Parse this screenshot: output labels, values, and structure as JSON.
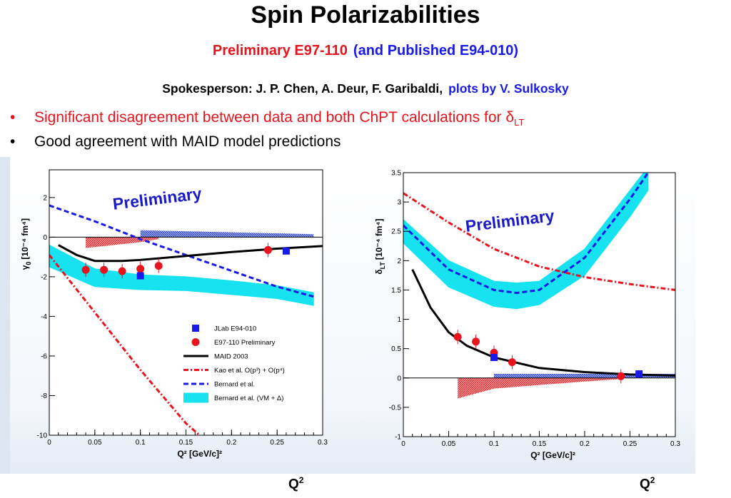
{
  "title": "Spin Polarizabilities",
  "subtitle": {
    "red": "Preliminary E97-110",
    "blue": "(and Published E94-010)"
  },
  "spokes": {
    "black": "Spokesperson: J. P. Chen,  A. Deur, F. Garibaldi,",
    "blue": "plots by   V. Sulkosky"
  },
  "bullets": [
    {
      "marker": "•",
      "text": "Significant disagreement between data and both ChPT calculations for ",
      "symbol": "δ",
      "sub": "LT"
    },
    {
      "marker": "•",
      "text": "Good agreement with MAID model predictions"
    }
  ],
  "footer": {
    "q": "Q",
    "sup": "2"
  },
  "colors": {
    "red": "#e8141d",
    "blue": "#1a1ae8",
    "band": "#16e2f0",
    "maid": "#000000"
  },
  "chart_data": [
    {
      "type": "line",
      "annotation": "Preliminary",
      "xlabel": "Q² [GeV/c]²",
      "ylabel_main": "γ",
      "ylabel_sub": "0",
      "ylabel_unit": "[10⁻⁴ fm⁴]",
      "xlim": [
        0,
        0.3
      ],
      "ylim": [
        -10,
        3.4
      ],
      "xticks": [
        0,
        0.05,
        0.1,
        0.15,
        0.2,
        0.25,
        0.3
      ],
      "xtick_labels": [
        "0",
        "0.05",
        "0.1",
        "0.15",
        "0.2",
        "0.25",
        "0.3"
      ],
      "yticks": [
        2,
        0,
        -2,
        -4,
        -6,
        -8,
        -10
      ],
      "ytick_labels": [
        "2",
        "0",
        "-2",
        "-4",
        "-6",
        "-8",
        "-10"
      ],
      "legend": [
        {
          "label": "JLab E94-010",
          "style": "square-blue"
        },
        {
          "label": "E97-110 Preliminary",
          "style": "circle-red"
        },
        {
          "label": "MAID 2003",
          "style": "line-black"
        },
        {
          "label": "Kao et al. O(p³) + O(p⁴)",
          "style": "line-red-dashdot"
        },
        {
          "label": "Bernard et al.",
          "style": "line-blue-dash"
        },
        {
          "label": "Bernard et al. (VM + Δ)",
          "style": "band-cyan"
        }
      ],
      "series": [
        {
          "name": "JLab E94-010",
          "points": [
            [
              0.1,
              -1.95
            ],
            [
              0.26,
              -0.7
            ]
          ]
        },
        {
          "name": "E97-110 Preliminary",
          "points": [
            [
              0.04,
              -1.65
            ],
            [
              0.06,
              -1.65
            ],
            [
              0.08,
              -1.72
            ],
            [
              0.1,
              -1.6
            ],
            [
              0.12,
              -1.45
            ],
            [
              0.24,
              -0.65
            ]
          ]
        },
        {
          "name": "MAID 2003",
          "x": [
            0.01,
            0.03,
            0.05,
            0.08,
            0.1,
            0.15,
            0.2,
            0.25,
            0.3
          ],
          "y": [
            -0.4,
            -0.9,
            -1.2,
            -1.2,
            -1.15,
            -0.95,
            -0.75,
            -0.58,
            -0.45
          ]
        },
        {
          "name": "Kao et al. O(p³) + O(p⁴)",
          "x": [
            0,
            0.05,
            0.1,
            0.15,
            0.165
          ],
          "y": [
            -0.9,
            -3.8,
            -6.7,
            -9.4,
            -10
          ]
        },
        {
          "name": "Bernard et al.",
          "x": [
            0,
            0.05,
            0.1,
            0.15,
            0.2,
            0.25,
            0.29
          ],
          "y": [
            1.6,
            0.8,
            -0.1,
            -0.9,
            -1.7,
            -2.5,
            -3.0
          ]
        },
        {
          "name": "Bernard et al. (VM + Δ)",
          "x": [
            0,
            0.05,
            0.1,
            0.15,
            0.2,
            0.25,
            0.29
          ],
          "upper": [
            -0.4,
            -1.6,
            -1.9,
            -2.0,
            -2.2,
            -2.45,
            -2.8
          ],
          "lower": [
            -1.5,
            -2.5,
            -2.65,
            -2.7,
            -2.9,
            -3.1,
            -3.45
          ]
        },
        {
          "name": "systematic-red",
          "x": [
            0.04,
            0.1,
            0.12
          ],
          "top": [
            0,
            0,
            0
          ],
          "bottom": [
            -0.55,
            -0.25,
            -0.1
          ]
        },
        {
          "name": "systematic-blue",
          "x": [
            0.1,
            0.29
          ],
          "top": [
            0.35,
            0.15
          ],
          "bottom": [
            0,
            0
          ]
        }
      ]
    },
    {
      "type": "line",
      "annotation": "Preliminary",
      "xlabel": "Q² [GeV/c]²",
      "ylabel_main": "δ",
      "ylabel_sub": "LT",
      "ylabel_unit": "[10⁻⁴ fm⁴]",
      "xlim": [
        0,
        0.3
      ],
      "ylim": [
        -1,
        3.5
      ],
      "xticks": [
        0,
        0.05,
        0.1,
        0.15,
        0.2,
        0.25,
        0.3
      ],
      "xtick_labels": [
        "0",
        "0.05",
        "0.1",
        "0.15",
        "0.2",
        "0.25",
        "0.3"
      ],
      "yticks": [
        3.5,
        3,
        2.5,
        2,
        1.5,
        1,
        0.5,
        0,
        -0.5,
        -1
      ],
      "ytick_labels": [
        "3.5",
        "3",
        "2.5",
        "2",
        "1.5",
        "1",
        "0.5",
        "0",
        "-0.5",
        "-1"
      ],
      "series": [
        {
          "name": "JLab E94-010",
          "points": [
            [
              0.1,
              0.35
            ],
            [
              0.26,
              0.07
            ]
          ]
        },
        {
          "name": "E97-110 Preliminary",
          "points": [
            [
              0.06,
              0.7
            ],
            [
              0.08,
              0.62
            ],
            [
              0.1,
              0.43
            ],
            [
              0.12,
              0.27
            ],
            [
              0.24,
              0.03
            ]
          ]
        },
        {
          "name": "MAID 2003",
          "x": [
            0.01,
            0.03,
            0.05,
            0.07,
            0.1,
            0.15,
            0.2,
            0.25,
            0.3
          ],
          "y": [
            1.85,
            1.2,
            0.78,
            0.55,
            0.35,
            0.17,
            0.1,
            0.06,
            0.04
          ]
        },
        {
          "name": "Kao et al. O(p³) + O(p⁴)",
          "x": [
            0,
            0.05,
            0.1,
            0.15,
            0.2,
            0.25,
            0.3
          ],
          "y": [
            3.15,
            2.65,
            2.2,
            1.9,
            1.72,
            1.6,
            1.5
          ]
        },
        {
          "name": "Bernard et al.",
          "x": [
            0,
            0.05,
            0.1,
            0.125,
            0.15,
            0.2,
            0.25,
            0.27
          ],
          "y": [
            2.6,
            1.85,
            1.5,
            1.45,
            1.5,
            2.05,
            3.05,
            3.5
          ]
        },
        {
          "name": "Bernard et al. (VM + Δ)",
          "x": [
            0,
            0.05,
            0.1,
            0.125,
            0.15,
            0.2,
            0.25,
            0.27
          ],
          "upper": [
            2.7,
            2.0,
            1.65,
            1.62,
            1.65,
            2.2,
            3.2,
            3.6
          ],
          "lower": [
            2.3,
            1.55,
            1.22,
            1.18,
            1.25,
            1.75,
            2.75,
            3.2
          ]
        },
        {
          "name": "systematic-red",
          "x": [
            0.06,
            0.1,
            0.2,
            0.24
          ],
          "top": [
            0,
            0,
            0,
            0
          ],
          "bottom": [
            -0.35,
            -0.18,
            -0.06,
            -0.02
          ]
        },
        {
          "name": "systematic-blue",
          "x": [
            0.1,
            0.3
          ],
          "top": [
            0.07,
            0.07
          ],
          "bottom": [
            0,
            0
          ]
        }
      ]
    }
  ]
}
